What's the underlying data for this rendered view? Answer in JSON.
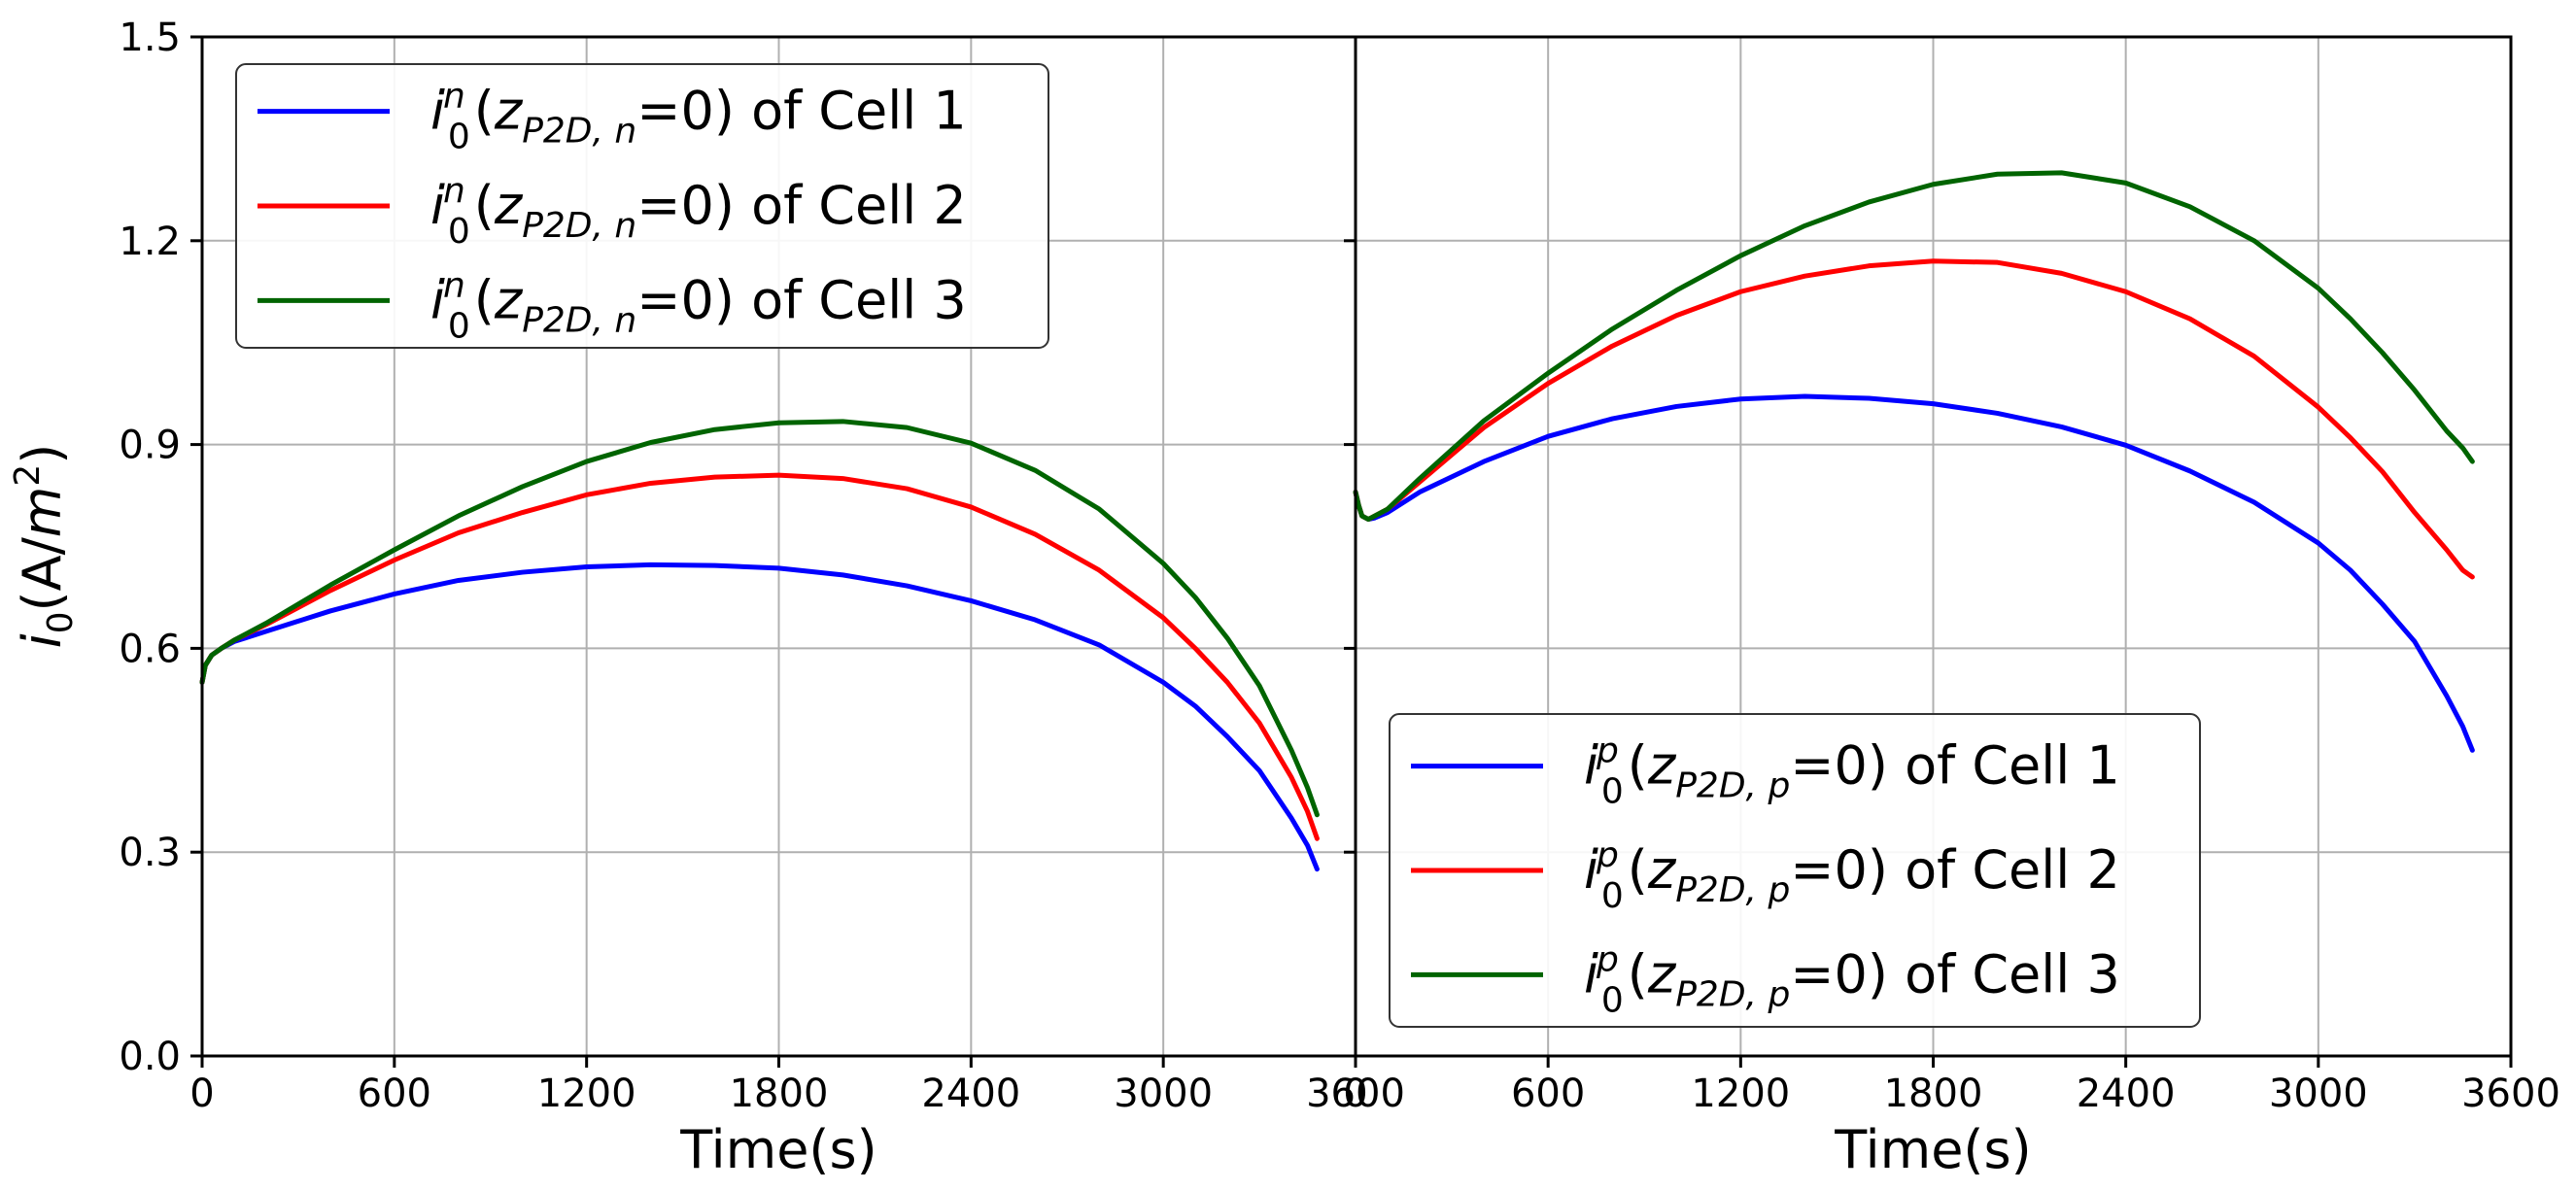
{
  "chart_data": [
    {
      "panel": "left",
      "type": "line",
      "xlabel": "Time(s)",
      "ylabel_parts": {
        "main": "i",
        "sub": "0",
        "unit_open": "(A/",
        "unit_base": "m",
        "unit_sup": "2",
        "unit_close": ")"
      },
      "xlim": [
        0,
        3600
      ],
      "ylim": [
        0,
        1.5
      ],
      "x_ticks": [
        0,
        600,
        1200,
        1800,
        2400,
        3000,
        3600
      ],
      "x_tick_labels": [
        "0",
        "600",
        "1200",
        "1800",
        "2400",
        "3000",
        "3600"
      ],
      "y_ticks": [
        0,
        0.3,
        0.6,
        0.9,
        1.2,
        1.5
      ],
      "y_tick_labels": [
        "0.0",
        "0.3",
        "0.6",
        "0.9",
        "1.2",
        "1.5"
      ],
      "grid": true,
      "legend_position": "top-left",
      "legend_superscript": "n",
      "legend_subscript": "P2D, n",
      "series": [
        {
          "name": "Cell 1",
          "legend_prefix": "i",
          "legend_sub0": "0",
          "legend_z": "z",
          "legend_eq": "=0) of Cell 1",
          "color": "#0000ff",
          "x": [
            0,
            10,
            30,
            60,
            100,
            200,
            300,
            400,
            600,
            800,
            1000,
            1200,
            1400,
            1600,
            1800,
            2000,
            2200,
            2400,
            2600,
            2800,
            3000,
            3100,
            3200,
            3300,
            3400,
            3450,
            3480
          ],
          "y": [
            0.55,
            0.575,
            0.59,
            0.6,
            0.61,
            0.625,
            0.64,
            0.655,
            0.68,
            0.7,
            0.712,
            0.72,
            0.723,
            0.722,
            0.718,
            0.708,
            0.692,
            0.67,
            0.642,
            0.605,
            0.55,
            0.515,
            0.47,
            0.42,
            0.35,
            0.31,
            0.275
          ]
        },
        {
          "name": "Cell 2",
          "legend_prefix": "i",
          "legend_sub0": "0",
          "legend_z": "z",
          "legend_eq": "=0) of Cell 2",
          "color": "#ff0000",
          "x": [
            0,
            10,
            30,
            60,
            100,
            200,
            300,
            400,
            600,
            800,
            1000,
            1200,
            1400,
            1600,
            1800,
            2000,
            2200,
            2400,
            2600,
            2800,
            3000,
            3100,
            3200,
            3300,
            3400,
            3450,
            3480
          ],
          "y": [
            0.55,
            0.575,
            0.59,
            0.6,
            0.612,
            0.635,
            0.66,
            0.685,
            0.73,
            0.77,
            0.8,
            0.826,
            0.843,
            0.852,
            0.855,
            0.85,
            0.835,
            0.808,
            0.768,
            0.715,
            0.645,
            0.6,
            0.55,
            0.49,
            0.41,
            0.36,
            0.32
          ]
        },
        {
          "name": "Cell 3",
          "legend_prefix": "i",
          "legend_sub0": "0",
          "legend_z": "z",
          "legend_eq": "=0) of Cell 3",
          "color": "#006400",
          "x": [
            0,
            10,
            30,
            60,
            100,
            200,
            300,
            400,
            600,
            800,
            1000,
            1200,
            1400,
            1600,
            1800,
            2000,
            2200,
            2400,
            2600,
            2800,
            3000,
            3100,
            3200,
            3300,
            3400,
            3450,
            3480
          ],
          "y": [
            0.55,
            0.575,
            0.59,
            0.6,
            0.612,
            0.637,
            0.665,
            0.693,
            0.745,
            0.795,
            0.838,
            0.875,
            0.903,
            0.922,
            0.932,
            0.934,
            0.925,
            0.902,
            0.862,
            0.805,
            0.725,
            0.675,
            0.615,
            0.545,
            0.45,
            0.395,
            0.355
          ]
        }
      ]
    },
    {
      "panel": "right",
      "type": "line",
      "xlabel": "Time(s)",
      "xlim": [
        0,
        3600
      ],
      "ylim": [
        0,
        1.5
      ],
      "x_ticks": [
        0,
        600,
        1200,
        1800,
        2400,
        3000,
        3600
      ],
      "x_tick_labels": [
        "0",
        "600",
        "1200",
        "1800",
        "2400",
        "3000",
        "3600"
      ],
      "y_ticks": [
        0,
        0.3,
        0.6,
        0.9,
        1.2,
        1.5
      ],
      "grid": true,
      "legend_position": "bottom-right",
      "legend_superscript": "p",
      "legend_subscript": "P2D, p",
      "series": [
        {
          "name": "Cell 1",
          "legend_prefix": "i",
          "legend_sub0": "0",
          "legend_z": "z",
          "legend_eq": "=0) of Cell 1",
          "color": "#0000ff",
          "x": [
            0,
            10,
            20,
            40,
            60,
            100,
            200,
            400,
            600,
            800,
            1000,
            1200,
            1400,
            1600,
            1800,
            2000,
            2200,
            2400,
            2600,
            2800,
            3000,
            3100,
            3200,
            3300,
            3400,
            3450,
            3480
          ],
          "y": [
            0.83,
            0.81,
            0.795,
            0.79,
            0.792,
            0.8,
            0.83,
            0.875,
            0.912,
            0.938,
            0.956,
            0.967,
            0.971,
            0.968,
            0.96,
            0.946,
            0.926,
            0.899,
            0.861,
            0.815,
            0.755,
            0.715,
            0.665,
            0.61,
            0.53,
            0.485,
            0.45
          ]
        },
        {
          "name": "Cell 2",
          "legend_prefix": "i",
          "legend_sub0": "0",
          "legend_z": "z",
          "legend_eq": "=0) of Cell 2",
          "color": "#ff0000",
          "x": [
            0,
            10,
            20,
            40,
            60,
            100,
            200,
            400,
            600,
            800,
            1000,
            1200,
            1400,
            1600,
            1800,
            2000,
            2200,
            2400,
            2600,
            2800,
            3000,
            3100,
            3200,
            3300,
            3400,
            3450,
            3480
          ],
          "y": [
            0.83,
            0.81,
            0.795,
            0.79,
            0.795,
            0.805,
            0.845,
            0.925,
            0.99,
            1.045,
            1.09,
            1.125,
            1.148,
            1.163,
            1.17,
            1.168,
            1.152,
            1.125,
            1.085,
            1.03,
            0.955,
            0.91,
            0.86,
            0.8,
            0.745,
            0.715,
            0.705
          ]
        },
        {
          "name": "Cell 3",
          "legend_prefix": "i",
          "legend_sub0": "0",
          "legend_z": "z",
          "legend_eq": "=0) of Cell 3",
          "color": "#006400",
          "x": [
            0,
            10,
            20,
            40,
            60,
            100,
            200,
            400,
            600,
            800,
            1000,
            1200,
            1400,
            1600,
            1800,
            2000,
            2200,
            2400,
            2600,
            2800,
            3000,
            3100,
            3200,
            3300,
            3400,
            3450,
            3480
          ],
          "y": [
            0.83,
            0.81,
            0.795,
            0.79,
            0.795,
            0.805,
            0.85,
            0.935,
            1.005,
            1.07,
            1.127,
            1.178,
            1.222,
            1.257,
            1.283,
            1.298,
            1.3,
            1.285,
            1.25,
            1.2,
            1.13,
            1.085,
            1.035,
            0.98,
            0.92,
            0.895,
            0.875
          ]
        }
      ]
    }
  ]
}
